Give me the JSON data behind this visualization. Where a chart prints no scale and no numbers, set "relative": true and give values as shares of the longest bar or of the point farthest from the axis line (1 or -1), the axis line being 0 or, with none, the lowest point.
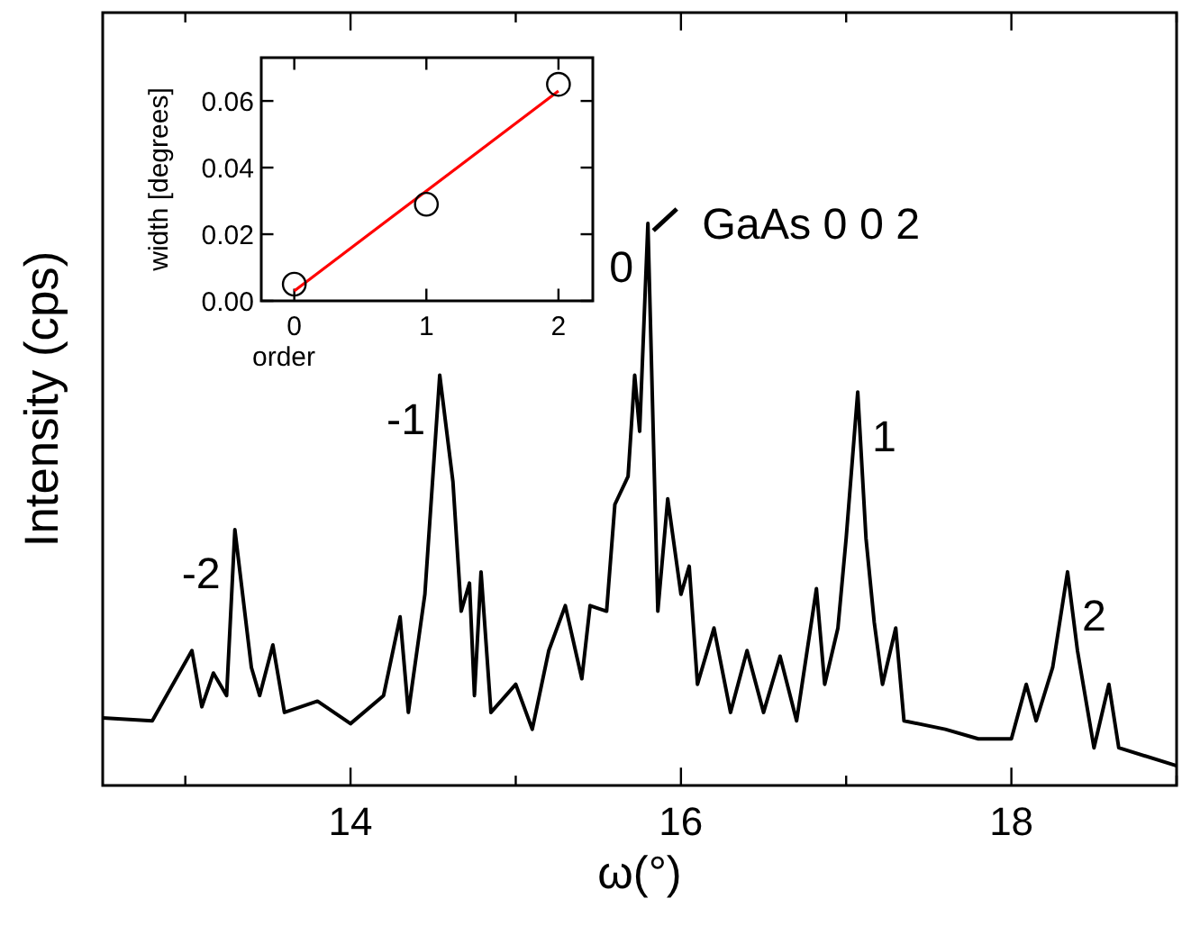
{
  "chart_data": [
    {
      "type": "line",
      "relative": true,
      "xlabel": "ω(°)",
      "ylabel": "Intensity (cps)",
      "xlim": [
        12.5,
        19
      ],
      "xticks": [
        {
          "value": 13,
          "label": null
        },
        14,
        {
          "value": 15,
          "label": null
        },
        16,
        {
          "value": 17,
          "label": null
        },
        18,
        {
          "value": 19,
          "label": null
        }
      ],
      "grid": false,
      "line_style": "solid",
      "series": [
        {
          "color": "#000000",
          "x": [
            12.5,
            12.8,
            13.04,
            13.1,
            13.17,
            13.25,
            13.3,
            13.4,
            13.45,
            13.53,
            13.6,
            13.8,
            14.0,
            14.2,
            14.3,
            14.35,
            14.45,
            14.54,
            14.62,
            14.67,
            14.72,
            14.75,
            14.79,
            14.85,
            15.0,
            15.1,
            15.2,
            15.3,
            15.4,
            15.45,
            15.55,
            15.6,
            15.68,
            15.72,
            15.75,
            15.8,
            15.86,
            15.92,
            16.0,
            16.05,
            16.1,
            16.2,
            16.3,
            16.4,
            16.5,
            16.6,
            16.7,
            16.82,
            16.87,
            16.95,
            17.0,
            17.07,
            17.12,
            17.17,
            17.22,
            17.3,
            17.35,
            17.6,
            17.8,
            18.0,
            18.09,
            18.15,
            18.25,
            18.34,
            18.4,
            18.5,
            18.59,
            18.65,
            19.0
          ],
          "values": [
            0.12,
            0.115,
            0.24,
            0.14,
            0.2,
            0.16,
            0.455,
            0.21,
            0.16,
            0.25,
            0.13,
            0.15,
            0.11,
            0.16,
            0.3,
            0.13,
            0.34,
            0.73,
            0.54,
            0.31,
            0.36,
            0.16,
            0.38,
            0.13,
            0.18,
            0.1,
            0.24,
            0.32,
            0.19,
            0.32,
            0.31,
            0.5,
            0.55,
            0.73,
            0.63,
            1.0,
            0.31,
            0.51,
            0.34,
            0.39,
            0.18,
            0.28,
            0.13,
            0.24,
            0.13,
            0.23,
            0.115,
            0.35,
            0.18,
            0.28,
            0.44,
            0.7,
            0.44,
            0.29,
            0.18,
            0.28,
            0.115,
            0.1,
            0.083,
            0.083,
            0.18,
            0.115,
            0.21,
            0.38,
            0.24,
            0.067,
            0.18,
            0.067,
            0.035
          ]
        }
      ],
      "annotations": [
        {
          "text": "-2",
          "x": 13.3,
          "y": 0.455
        },
        {
          "text": "-1",
          "x": 14.54,
          "y": 0.73
        },
        {
          "text": "0",
          "x": 15.8,
          "y": 1.0
        },
        {
          "text": "GaAs 0 0 2",
          "x": 15.8,
          "y": 1.0
        },
        {
          "text": "1",
          "x": 17.07,
          "y": 0.7
        },
        {
          "text": "2",
          "x": 18.34,
          "y": 0.38
        }
      ]
    },
    {
      "type": "scatter",
      "xlabel": "order",
      "ylabel": "width [degrees]",
      "xlim": [
        -0.25,
        2.26
      ],
      "xticks": [
        0,
        1,
        2
      ],
      "ylim": [
        0,
        0.073
      ],
      "yticks": [
        {
          "value": 0,
          "label": "0.00"
        },
        {
          "value": 0.02,
          "label": "0.02"
        },
        {
          "value": 0.04,
          "label": "0.04"
        },
        {
          "value": 0.06,
          "label": "0.06"
        }
      ],
      "grid": false,
      "series": [
        {
          "color": "#000000",
          "marker": "circle",
          "x": [
            0,
            1,
            2
          ],
          "values": [
            0.005,
            0.029,
            0.065
          ]
        },
        {
          "type": "line",
          "color": "#ff0000",
          "line_style": "solid",
          "x": [
            0,
            2
          ],
          "values": [
            0.003,
            0.063
          ]
        }
      ]
    }
  ]
}
